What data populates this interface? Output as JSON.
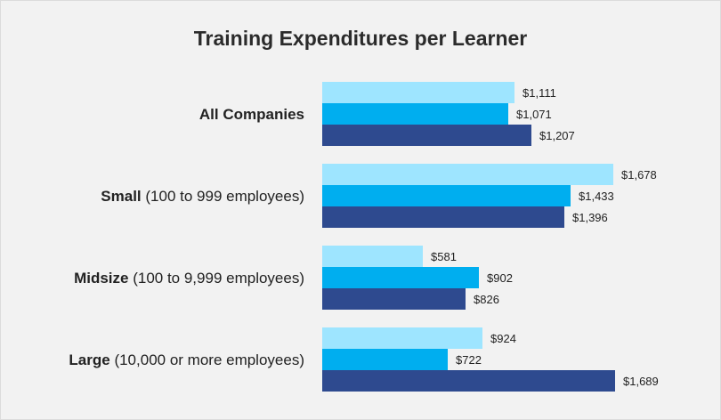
{
  "chart_data": {
    "type": "bar",
    "orientation": "horizontal",
    "title": "Training Expenditures per Learner",
    "categories": [
      {
        "name": "All Companies",
        "detail": ""
      },
      {
        "name": "Small",
        "detail": " (100 to 999 employees)"
      },
      {
        "name": "Midsize",
        "detail": " (100 to 9,999 employees)"
      },
      {
        "name": "Large",
        "detail": " (10,000 or more employees)"
      }
    ],
    "series": [
      {
        "color": "#9ee5ff",
        "values": [
          1111,
          1678,
          581,
          924
        ],
        "labels": [
          "$1,111",
          "$1,678",
          "$581",
          "$924"
        ]
      },
      {
        "color": "#00aeef",
        "values": [
          1071,
          1433,
          902,
          722
        ],
        "labels": [
          "$1,071",
          "$1,433",
          "$902",
          "$722"
        ]
      },
      {
        "color": "#2e4a8f",
        "values": [
          1207,
          1396,
          826,
          1689
        ],
        "labels": [
          "$1,207",
          "$1,396",
          "$826",
          "$1,689"
        ]
      }
    ],
    "xlim": [
      0,
      1689
    ],
    "grid": false,
    "legend": "none"
  }
}
